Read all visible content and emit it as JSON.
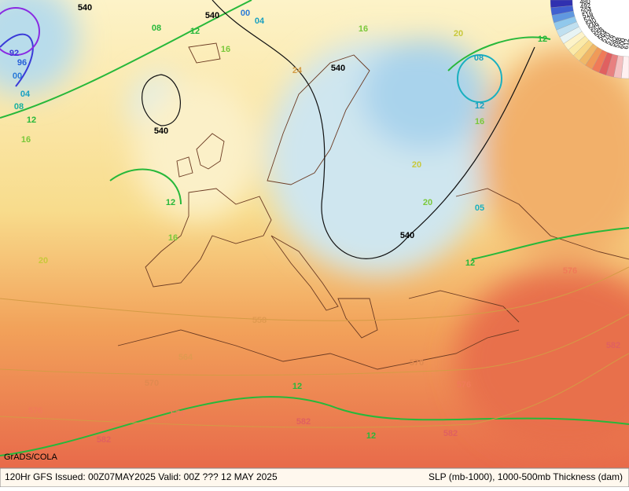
{
  "footer": {
    "left": "120Hr GFS Issued: 00Z07MAY2025 Valid: 00Z ??? 12 MAY 2025",
    "right": "SLP (mb-1000), 1000-500mb Thickness (dam)"
  },
  "credit": "GrADS/COLA",
  "colorbar_labels": [
    "612",
    "600",
    "588",
    "582",
    "576",
    "570",
    "564",
    "558",
    "552",
    "546",
    "540",
    "528",
    "516",
    "504",
    "492",
    "480"
  ],
  "contour_labels": [
    "540",
    "540",
    "540",
    "540",
    "540",
    "00",
    "04",
    "08",
    "08",
    "12",
    "12",
    "12",
    "12",
    "12",
    "12",
    "16",
    "16",
    "16",
    "16",
    "16",
    "92",
    "96",
    "00",
    "04",
    "08",
    "24",
    "20",
    "20",
    "20",
    "20",
    "558",
    "564",
    "570",
    "570",
    "576",
    "576",
    "576",
    "576",
    "582",
    "582",
    "582",
    "582",
    "05",
    "12",
    "12"
  ]
}
